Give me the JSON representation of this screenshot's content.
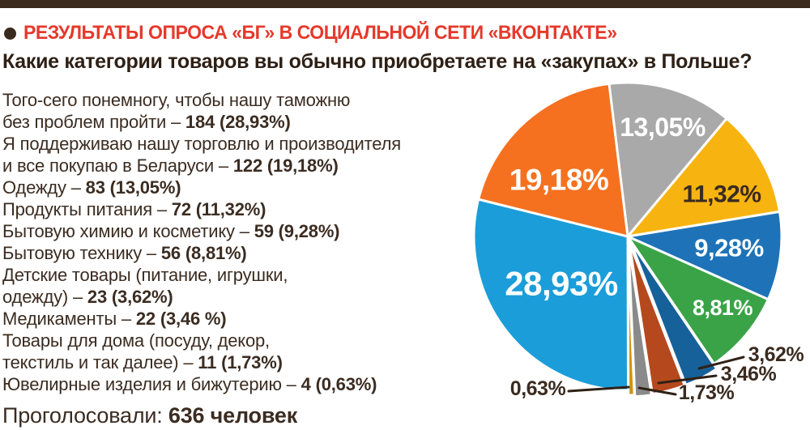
{
  "header": {
    "bar_color": "#3a2a1e",
    "title": "РЕЗУЛЬТАТЫ ОПРОСА «БГ» В СОЦИАЛЬНОЙ СЕТИ «ВКОНТАКТЕ»",
    "title_color": "#e5392c",
    "question": "Какие категории товаров вы обычно приобретаете на «закупах» в Польше?"
  },
  "survey_list": {
    "text_color": "#3b2c21",
    "lines": [
      {
        "normal": "Того-сего понемногу, чтобы нашу таможню",
        "bold": ""
      },
      {
        "normal": "без проблем пройти – ",
        "bold": "184 (28,93%)"
      },
      {
        "normal": "Я поддерживаю нашу торговлю и производителя",
        "bold": ""
      },
      {
        "normal": "и все покупаю в Беларуси – ",
        "bold": "122 (19,18%)"
      },
      {
        "normal": "Одежду – ",
        "bold": "83 (13,05%)"
      },
      {
        "normal": "Продукты питания – ",
        "bold": "72 (11,32%)"
      },
      {
        "normal": "Бытовую химию и косметику – ",
        "bold": "59 (9,28%)"
      },
      {
        "normal": "Бытовую технику – ",
        "bold": "56 (8,81%)"
      },
      {
        "normal": "Детские товары (питание, игрушки,",
        "bold": ""
      },
      {
        "normal": "одежду) – ",
        "bold": "23 (3,62%)"
      },
      {
        "normal": "Медикаменты – ",
        "bold": "22 (3,46 %)"
      },
      {
        "normal": "Товары для дома (посуду, декор,",
        "bold": ""
      },
      {
        "normal": "текстиль и так далее) – ",
        "bold": "11 (1,73%)"
      },
      {
        "normal": "Ювелирные изделия и бижутерию – ",
        "bold": "4 (0,63%)"
      }
    ]
  },
  "footer": {
    "label": "Проголосовали: ",
    "value": "636 человек"
  },
  "chart_data": {
    "type": "pie",
    "title": "Какие категории товаров вы обычно приобретаете на «закупах» в Польше?",
    "total_votes": 636,
    "start_angle_deg": -7,
    "direction": "clockwise",
    "slices": [
      {
        "category": "Одежду",
        "votes": 83,
        "pct": 13.05,
        "label": "13,05%",
        "color": "#a9a9a9",
        "label_color": "#ffffff"
      },
      {
        "category": "Продукты питания",
        "votes": 72,
        "pct": 11.32,
        "label": "11,32%",
        "color": "#f7b410",
        "label_color": "#3a2b20"
      },
      {
        "category": "Бытовую химию и косметику",
        "votes": 59,
        "pct": 9.28,
        "label": "9,28%",
        "color": "#1e73b8",
        "label_color": "#ffffff"
      },
      {
        "category": "Бытовую технику",
        "votes": 56,
        "pct": 8.81,
        "label": "8,81%",
        "color": "#3aa347",
        "label_color": "#ffffff"
      },
      {
        "category": "Детские товары (питание, игрушки, одежду)",
        "votes": 23,
        "pct": 3.62,
        "label": "3,62%",
        "color": "#17619a",
        "label_color": "#3a2b20"
      },
      {
        "category": "Медикаменты",
        "votes": 22,
        "pct": 3.46,
        "label": "3,46%",
        "color": "#b5491d",
        "label_color": "#3a2b20"
      },
      {
        "category": "Товары для дома (посуду, декор, текстиль и так далее)",
        "votes": 11,
        "pct": 1.73,
        "label": "1,73%",
        "color": "#8a8a8a",
        "label_color": "#3a2b20"
      },
      {
        "category": "Ювелирные изделия и бижутерию",
        "votes": 4,
        "pct": 0.63,
        "label": "0,63%",
        "color": "#cd9410",
        "label_color": "#3a2b20"
      },
      {
        "category": "Того-сего понемногу, чтобы нашу таможню без проблем пройти",
        "votes": 184,
        "pct": 28.93,
        "label": "28,93%",
        "color": "#1b9dd9",
        "label_color": "#ffffff"
      },
      {
        "category": "Я поддерживаю нашу торговлю и производителя и все покупаю в Беларуси",
        "votes": 122,
        "pct": 19.18,
        "label": "19,18%",
        "color": "#f57120",
        "label_color": "#ffffff"
      }
    ]
  }
}
